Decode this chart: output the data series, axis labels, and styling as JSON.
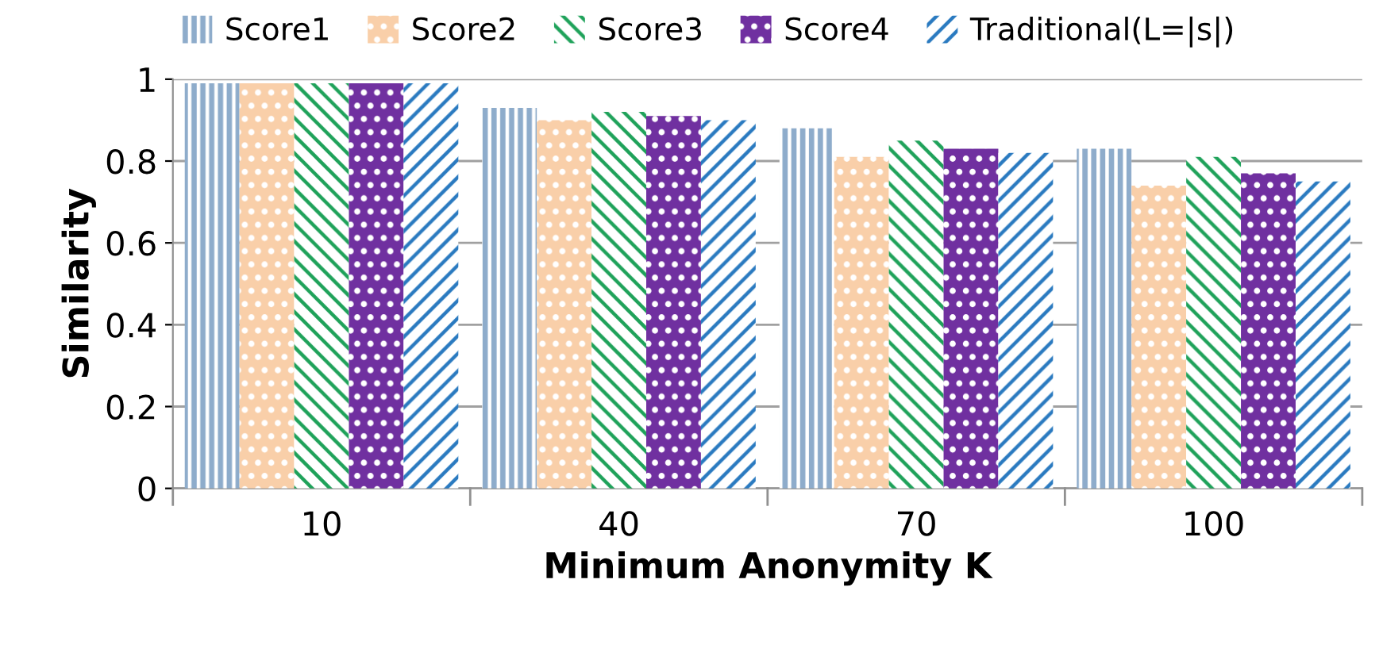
{
  "chart_data": {
    "type": "bar",
    "xlabel": "Minimum Anonymity K",
    "ylabel": "Similarity",
    "categories": [
      "10",
      "40",
      "70",
      "100"
    ],
    "series": [
      {
        "name": "Score1",
        "color": "#8eaccb",
        "values": [
          0.99,
          0.93,
          0.88,
          0.83
        ]
      },
      {
        "name": "Score2",
        "color": "#f9cfa9",
        "values": [
          0.99,
          0.9,
          0.81,
          0.74
        ]
      },
      {
        "name": "Score3",
        "color": "#1fa25a",
        "values": [
          0.99,
          0.92,
          0.85,
          0.81
        ]
      },
      {
        "name": "Score4",
        "color": "#7030a0",
        "values": [
          0.99,
          0.91,
          0.83,
          0.77
        ]
      },
      {
        "name": "Traditional(L=|s|)",
        "color": "#2a7ac0",
        "values": [
          0.99,
          0.9,
          0.82,
          0.75
        ]
      }
    ],
    "ylim": [
      0,
      1
    ],
    "yticks": [
      0,
      0.2,
      0.4,
      0.6,
      0.8,
      1
    ],
    "grid": "y",
    "legend": "top"
  }
}
